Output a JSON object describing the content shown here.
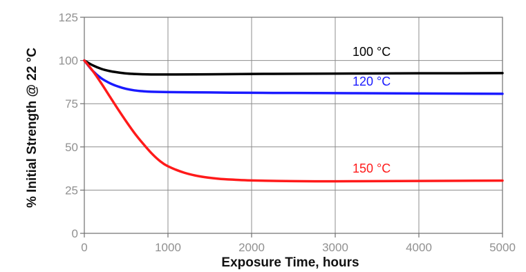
{
  "chart_data": {
    "type": "line",
    "xlabel": "Exposure Time, hours",
    "ylabel": "% Initial Strength @ 22 °C",
    "xlim": [
      0,
      5000
    ],
    "ylim": [
      0,
      125
    ],
    "x_ticks": [
      0,
      1000,
      2000,
      3000,
      4000,
      5000
    ],
    "x_tick_labels": [
      "0",
      "1000",
      "2000",
      "3000",
      "4000",
      "5000"
    ],
    "y_ticks": [
      0,
      25,
      50,
      75,
      100,
      125
    ],
    "y_tick_labels": [
      "0",
      "25",
      "50",
      "75",
      "100",
      "125"
    ],
    "grid": true,
    "legend": "inline labels near curves",
    "series": [
      {
        "name": "100 °C",
        "color": "#000000",
        "x": [
          0,
          100,
          200,
          300,
          400,
          500,
          600,
          700,
          800,
          1000,
          1500,
          2000,
          2500,
          3000,
          3500,
          4000,
          4500,
          5000
        ],
        "y": [
          100,
          97.2,
          95.2,
          93.9,
          93.1,
          92.5,
          92.2,
          92.0,
          91.9,
          91.9,
          92.0,
          92.2,
          92.3,
          92.4,
          92.5,
          92.6,
          92.6,
          92.7
        ]
      },
      {
        "name": "120 °C",
        "color": "#1a1aff",
        "x": [
          0,
          100,
          200,
          300,
          400,
          500,
          600,
          700,
          800,
          1000,
          1500,
          2000,
          2500,
          3000,
          3500,
          4000,
          4500,
          5000
        ],
        "y": [
          100,
          94.0,
          89.8,
          87.0,
          85.0,
          83.6,
          82.7,
          82.2,
          81.9,
          81.7,
          81.5,
          81.3,
          81.2,
          81.1,
          81.0,
          80.9,
          80.8,
          80.7
        ]
      },
      {
        "name": "150 °C",
        "color": "#ff1a1a",
        "x": [
          0,
          100,
          200,
          300,
          400,
          500,
          600,
          700,
          800,
          900,
          1000,
          1200,
          1400,
          1600,
          1800,
          2000,
          2500,
          3000,
          3500,
          4000,
          4500,
          5000
        ],
        "y": [
          100,
          94.0,
          87.0,
          79.5,
          72.0,
          64.8,
          58.0,
          52.0,
          46.5,
          42.0,
          38.8,
          35.0,
          32.8,
          31.6,
          31.0,
          30.6,
          30.2,
          30.1,
          30.2,
          30.3,
          30.4,
          30.5
        ]
      }
    ]
  }
}
